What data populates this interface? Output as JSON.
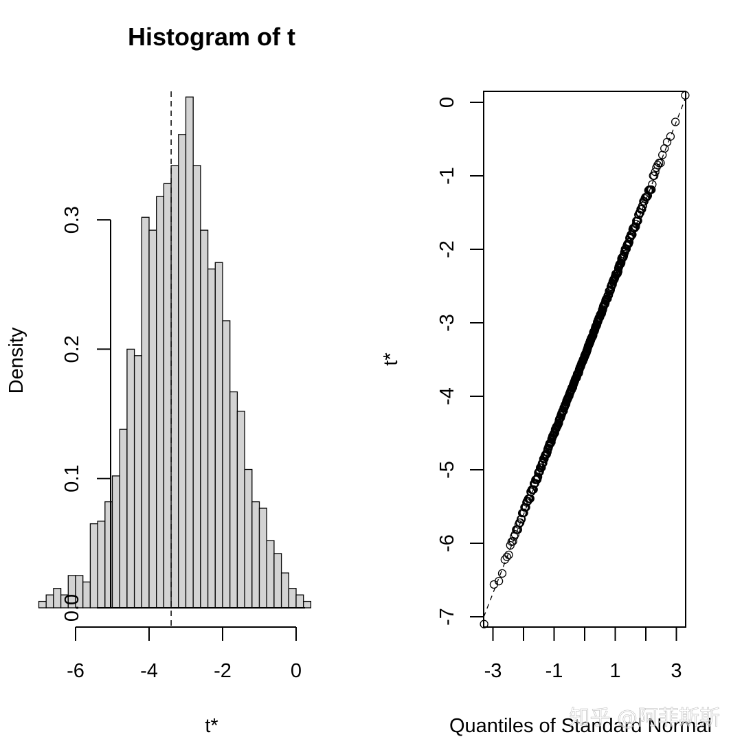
{
  "chart_data": [
    {
      "type": "bar",
      "title": "Histogram of t",
      "xlabel": "t*",
      "ylabel": "Density",
      "bin_width": 0.2,
      "bin_start": -7.0,
      "values": [
        0.005,
        0.01,
        0.015,
        0.01,
        0.025,
        0.025,
        0.02,
        0.065,
        0.067,
        0.082,
        0.102,
        0.138,
        0.2,
        0.195,
        0.302,
        0.292,
        0.318,
        0.328,
        0.342,
        0.366,
        0.395,
        0.342,
        0.292,
        0.262,
        0.267,
        0.222,
        0.167,
        0.152,
        0.107,
        0.082,
        0.077,
        0.052,
        0.042,
        0.027,
        0.015,
        0.01,
        0.005
      ],
      "xlim": [
        -7.2,
        0.4
      ],
      "ylim": [
        0,
        0.4
      ],
      "xticks": [
        "-6",
        "-4",
        "-2",
        "0"
      ],
      "yticks": [
        "0.0",
        "0.1",
        "0.2",
        "0.3"
      ],
      "reference_line": -3.4
    },
    {
      "type": "scatter",
      "title": "",
      "xlabel": "Quantiles of Standard Normal",
      "ylabel": "t*",
      "xlim": [
        -3.3,
        3.3
      ],
      "ylim": [
        -7.15,
        0.15
      ],
      "xticks": [
        "-3",
        "-1",
        "1",
        "3"
      ],
      "yticks": [
        "0",
        "-1",
        "-2",
        "-3",
        "-4",
        "-5",
        "-6",
        "-7"
      ],
      "reference_line": {
        "intercept": -3.47,
        "slope": 1.07
      },
      "n_points": 1000
    }
  ],
  "watermark": "知乎 @阿菲斯斯"
}
